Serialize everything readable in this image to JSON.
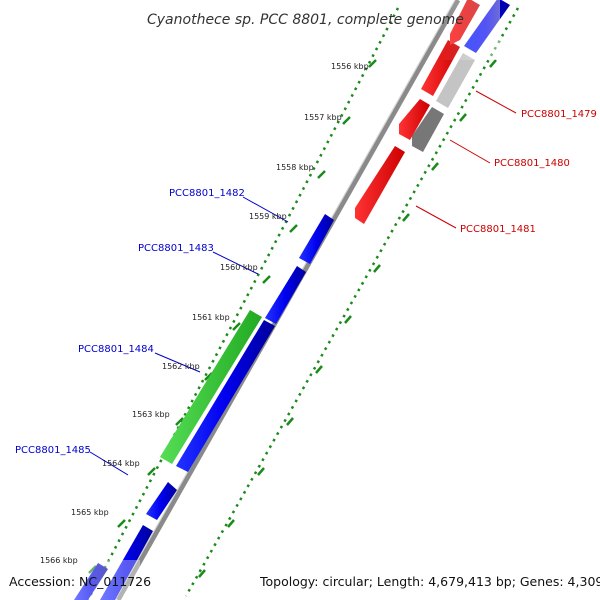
{
  "title": "Cyanothece sp. PCC 8801, complete genome",
  "footer": {
    "accession": "Accession: NC_011726",
    "topology": "Topology: circular; Length: 4,679,413 bp; Genes: 4,309"
  },
  "colors": {
    "forward_strand": "#ff0000",
    "reverse_strand": "#0000ee",
    "rna_gene": "#33cc33",
    "backbone": "#8a8a8a",
    "tick": "#1a8a1a",
    "forward_label": "#cc0000",
    "reverse_label": "#0000cc"
  },
  "kbp_ticks": [
    "1556 kbp",
    "1557 kbp",
    "1558 kbp",
    "1559 kbp",
    "1560 kbp",
    "1561 kbp",
    "1562 kbp",
    "1563 kbp",
    "1564 kbp",
    "1565 kbp",
    "1566 kbp"
  ],
  "gene_labels": {
    "right": [
      "PCC8801_1479",
      "PCC8801_1480",
      "PCC8801_1481"
    ],
    "left": [
      "PCC8801_1482",
      "PCC8801_1483",
      "PCC8801_1484",
      "PCC8801_1485"
    ]
  }
}
